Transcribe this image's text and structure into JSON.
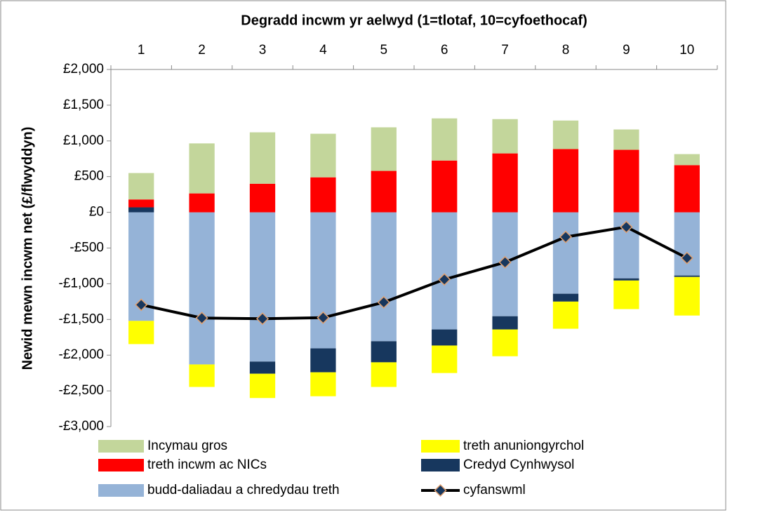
{
  "chart_data": {
    "type": "bar",
    "title": "Degradd incwm yr aelwyd (1=tlotaf, 10=cyfoethocaf)",
    "y_label": "Newid mewn incwm net (£/flwyddyn)",
    "categories": [
      "1",
      "2",
      "3",
      "4",
      "5",
      "6",
      "7",
      "8",
      "9",
      "10"
    ],
    "stacked": true,
    "series": [
      {
        "name": "Incymau gros",
        "color": "#c3d69b",
        "values": [
          370,
          700,
          720,
          610,
          610,
          590,
          480,
          400,
          285,
          155
        ]
      },
      {
        "name": "treth anuniongyrchol",
        "color": "#ffff00",
        "values": [
          -325,
          -315,
          -340,
          -335,
          -345,
          -385,
          -375,
          -380,
          -400,
          -540
        ]
      },
      {
        "name": "treth incwm ac NICs",
        "color": "#ff0000",
        "values": [
          110,
          265,
          400,
          490,
          580,
          725,
          825,
          885,
          875,
          660
        ]
      },
      {
        "name": "Credyd Cynhwysol",
        "color": "#17375e",
        "values": [
          70,
          0,
          -170,
          -335,
          -295,
          -225,
          -185,
          -110,
          -30,
          -20
        ]
      },
      {
        "name": "budd-daliadau a chredydau treth",
        "color": "#95b3d7",
        "values": [
          -1520,
          -2130,
          -2090,
          -1905,
          -1805,
          -1640,
          -1455,
          -1140,
          -925,
          -885
        ]
      },
      {
        "name": "cyfanswml",
        "type": "line",
        "color": "#000000",
        "marker_color": "#17375e",
        "values": [
          -1295,
          -1480,
          -1490,
          -1475,
          -1260,
          -940,
          -700,
          -345,
          -205,
          -640
        ]
      }
    ],
    "ylim": [
      -3000,
      2000
    ],
    "yticks": [
      {
        "value": -3000,
        "label": "-£3,000"
      },
      {
        "value": -2500,
        "label": "-£2,500"
      },
      {
        "value": -2000,
        "label": "-£2,000"
      },
      {
        "value": -1500,
        "label": "-£1,500"
      },
      {
        "value": -1000,
        "label": "-£1,000"
      },
      {
        "value": -500,
        "label": "-£500"
      },
      {
        "value": 0,
        "label": "£0"
      },
      {
        "value": 500,
        "label": "£500"
      },
      {
        "value": 1000,
        "label": "£1,000"
      },
      {
        "value": 1500,
        "label": "£1,500"
      },
      {
        "value": 2000,
        "label": "£2,000"
      }
    ],
    "grid": false,
    "legend": "bottom"
  }
}
